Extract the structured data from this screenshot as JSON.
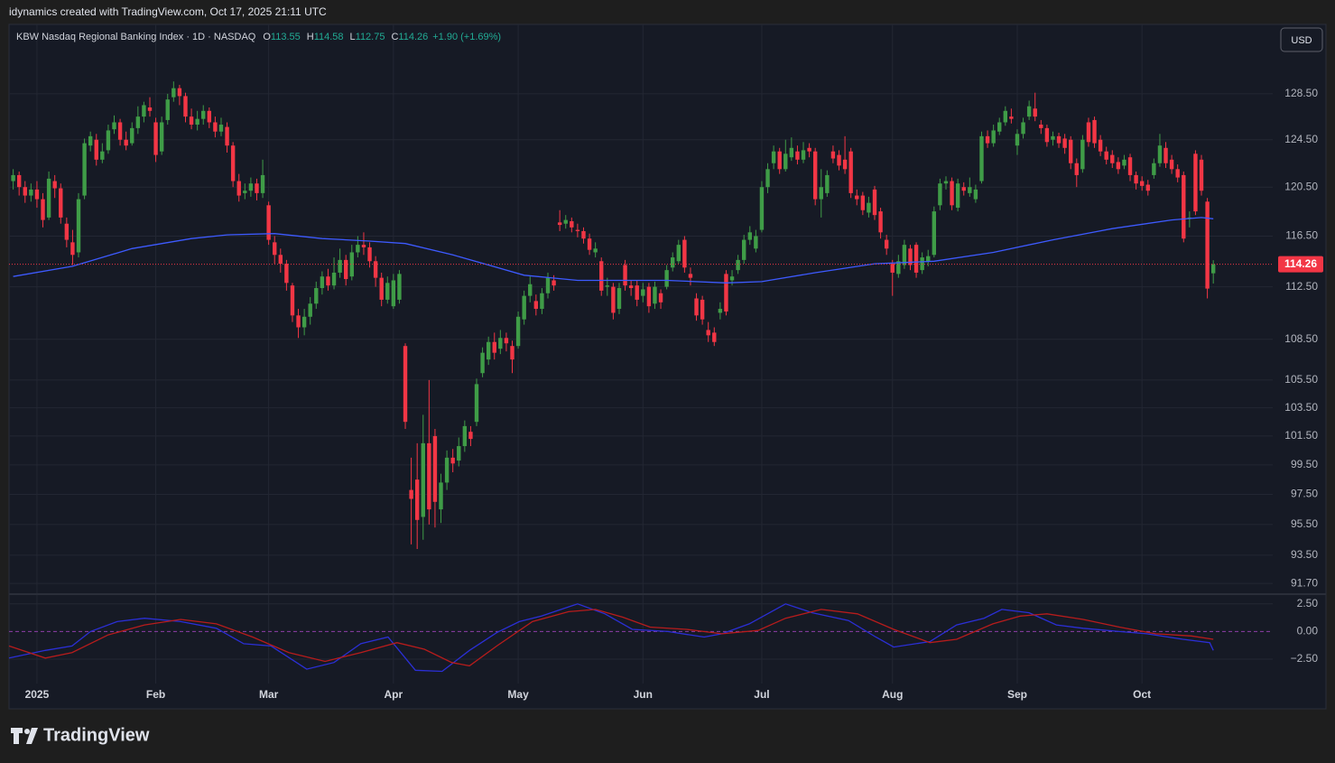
{
  "header": {
    "caption": "idynamics created with TradingView.com, Oct 17, 2025 21:11 UTC",
    "symbol": "KBW Nasdaq Regional Banking Index · 1D · NASDAQ",
    "ohlc_labels": [
      "O",
      "H",
      "L",
      "C"
    ],
    "change": "+1.90 (+1.69%)",
    "currency": "USD",
    "brand": "TradingView"
  },
  "chart_data": [
    {
      "type": "candlestick",
      "up_color": "#3f9c47",
      "down_color": "#f23645",
      "log_scale": true,
      "grid": true,
      "xlim": [
        -0.7,
        212
      ],
      "ylim": [
        91.08,
        134.8
      ],
      "xticks": [
        {
          "value": 4,
          "label": "2025"
        },
        {
          "value": 24,
          "label": "Feb"
        },
        {
          "value": 43,
          "label": "Mar"
        },
        {
          "value": 64,
          "label": "Apr"
        },
        {
          "value": 85,
          "label": "May"
        },
        {
          "value": 106,
          "label": "Jun"
        },
        {
          "value": 126,
          "label": "Jul"
        },
        {
          "value": 148,
          "label": "Aug"
        },
        {
          "value": 169,
          "label": "Sep"
        },
        {
          "value": 190,
          "label": "Oct"
        }
      ],
      "yticks": [
        {
          "value": 128.5,
          "label": "128.50"
        },
        {
          "value": 124.5,
          "label": "124.50"
        },
        {
          "value": 120.5,
          "label": "120.50"
        },
        {
          "value": 116.5,
          "label": "116.50"
        },
        {
          "value": 112.5,
          "label": "112.50"
        },
        {
          "value": 108.5,
          "label": "108.50"
        },
        {
          "value": 105.5,
          "label": "105.50"
        },
        {
          "value": 103.5,
          "label": "103.50"
        },
        {
          "value": 101.5,
          "label": "101.50"
        },
        {
          "value": 99.5,
          "label": "99.50"
        },
        {
          "value": 97.5,
          "label": "97.50"
        },
        {
          "value": 95.5,
          "label": "95.50"
        },
        {
          "value": 93.5,
          "label": "93.50"
        },
        {
          "value": 91.7,
          "label": "91.70"
        }
      ],
      "open": [
        121.0,
        121.5,
        120.5,
        119.8,
        120.3,
        119.5,
        118.0,
        121.0,
        120.4,
        117.5,
        116.0,
        115.2,
        119.8,
        124.0,
        124.5,
        122.8,
        123.6,
        125.4,
        126.0,
        124.5,
        124.2,
        125.5,
        126.5,
        127.3,
        126.0,
        123.5,
        126.2,
        128.2,
        129.0,
        128.3,
        126.5,
        125.8,
        126.3,
        127.0,
        126.0,
        125.2,
        125.6,
        124.0,
        121.0,
        120.0,
        120.2,
        120.8,
        120.0,
        119.0,
        116.0,
        115.0,
        114.3,
        112.6,
        110.3,
        109.4,
        110.2,
        111.2,
        112.4,
        113.3,
        112.6,
        113.6,
        114.6,
        113.3,
        115.2,
        115.8,
        115.6,
        114.5,
        113.2,
        111.5,
        111.0,
        111.5,
        108.0,
        97.8,
        98.5,
        96.0,
        101.0,
        101.5,
        96.5,
        98.3,
        100.0,
        99.8,
        100.8,
        101.8,
        102.5,
        106.0,
        107.0,
        108.3,
        107.8,
        108.6,
        108.0,
        108.0,
        110.0,
        111.8,
        111.4,
        110.8,
        112.0,
        113.0,
        117.6,
        117.5,
        117.7,
        117.0,
        116.9,
        116.3,
        115.2,
        114.5,
        112.5,
        112.5,
        110.8,
        114.2,
        112.6,
        112.6,
        111.8,
        112.5,
        111.2,
        112.0,
        112.5,
        114.0,
        114.5,
        116.2,
        113.5,
        111.6,
        111.5,
        109.2,
        109.0,
        110.5,
        113.5,
        113.0,
        113.8,
        114.6,
        116.2,
        115.5,
        117.0,
        120.5,
        122.5,
        123.5,
        122.0,
        123.0,
        123.5,
        122.8,
        123.8,
        123.5,
        119.5,
        120.0,
        123.5,
        123.2,
        122.8,
        123.5,
        119.8,
        119.8,
        118.4,
        120.3,
        118.5,
        116.2,
        114.3,
        113.5,
        114.2,
        115.5,
        115.8,
        113.8,
        114.5,
        115.0,
        119.0,
        120.8,
        121.0,
        118.8,
        120.5,
        120.0,
        119.5,
        121.0,
        124.8,
        124.2,
        125.2,
        126.0,
        126.5,
        124.0,
        125.0,
        126.5,
        127.2,
        125.8,
        125.5,
        124.5,
        124.8,
        124.6,
        124.5,
        122.5,
        122.0,
        126.0,
        126.2,
        124.5,
        123.5,
        123.2,
        122.6,
        122.3,
        123.0,
        121.5,
        121.0,
        120.7,
        121.5,
        122.5,
        123.8,
        122.8,
        122.0,
        121.5,
        118.0,
        123.3,
        122.8,
        119.3,
        113.55
      ],
      "high": [
        122.0,
        121.8,
        121.0,
        120.8,
        121.0,
        120.0,
        121.8,
        121.5,
        120.8,
        118.0,
        117.0,
        120.0,
        124.6,
        125.2,
        125.0,
        124.2,
        125.8,
        126.6,
        126.3,
        125.2,
        126.0,
        127.4,
        127.8,
        128.2,
        126.4,
        126.5,
        128.5,
        129.6,
        129.3,
        128.6,
        127.2,
        127.0,
        127.5,
        127.3,
        126.5,
        126.4,
        126.0,
        124.3,
        121.6,
        120.8,
        121.3,
        121.2,
        122.8,
        119.3,
        116.5,
        115.5,
        114.6,
        112.8,
        110.8,
        110.8,
        111.7,
        112.9,
        113.7,
        113.9,
        114.8,
        115.5,
        115.0,
        115.8,
        116.5,
        116.8,
        116.0,
        114.9,
        113.6,
        113.3,
        113.5,
        113.8,
        108.2,
        100.0,
        101.0,
        103.0,
        105.5,
        102.0,
        98.9,
        100.5,
        100.6,
        101.4,
        102.6,
        102.2,
        105.6,
        107.9,
        108.7,
        109.0,
        109.2,
        109.0,
        108.4,
        110.6,
        112.2,
        113.3,
        111.9,
        112.4,
        113.6,
        113.4,
        118.6,
        118.2,
        118.0,
        117.5,
        117.2,
        116.7,
        116.0,
        114.8,
        113.2,
        112.8,
        112.8,
        114.6,
        113.0,
        113.0,
        112.8,
        112.8,
        112.9,
        112.3,
        114.2,
        115.2,
        116.2,
        116.5,
        114.0,
        112.0,
        111.8,
        109.8,
        109.4,
        111.3,
        113.8,
        113.8,
        115.0,
        116.6,
        117.3,
        117.0,
        121.0,
        122.5,
        124.0,
        123.8,
        124.5,
        124.7,
        124.0,
        124.3,
        124.2,
        123.8,
        122.0,
        121.9,
        124.0,
        123.6,
        124.8,
        123.8,
        120.3,
        120.1,
        119.7,
        120.6,
        118.8,
        116.6,
        114.6,
        115.0,
        116.2,
        115.8,
        116.0,
        115.2,
        115.4,
        118.9,
        121.2,
        121.4,
        121.3,
        121.2,
        120.9,
        121.3,
        120.7,
        125.2,
        125.3,
        125.8,
        126.4,
        127.4,
        127.2,
        125.4,
        126.4,
        127.9,
        128.6,
        126.2,
        125.8,
        125.2,
        125.1,
        125.0,
        124.8,
        122.9,
        124.9,
        126.4,
        126.5,
        124.9,
        123.9,
        123.6,
        123.0,
        123.2,
        123.3,
        121.8,
        121.4,
        121.1,
        122.9,
        125.0,
        124.3,
        123.2,
        122.4,
        121.8,
        118.5,
        123.6,
        123.2,
        119.6,
        114.58
      ],
      "low": [
        120.3,
        119.8,
        119.2,
        119.3,
        118.8,
        117.2,
        117.8,
        119.6,
        117.5,
        115.6,
        114.2,
        114.8,
        119.5,
        123.5,
        122.3,
        122.5,
        123.3,
        125.0,
        124.0,
        123.6,
        124.0,
        125.0,
        126.0,
        126.5,
        122.6,
        123.2,
        125.8,
        127.8,
        127.5,
        126.0,
        125.4,
        125.3,
        125.8,
        125.5,
        124.7,
        124.8,
        123.4,
        120.5,
        119.3,
        119.5,
        119.7,
        119.4,
        119.6,
        115.8,
        114.3,
        113.6,
        112.2,
        109.8,
        108.6,
        108.8,
        109.6,
        110.8,
        111.9,
        112.2,
        112.3,
        113.2,
        112.6,
        113.0,
        114.8,
        115.0,
        114.0,
        112.5,
        111.0,
        111.2,
        110.8,
        111.2,
        102.0,
        94.2,
        93.9,
        94.5,
        95.5,
        95.3,
        95.6,
        97.8,
        99.0,
        99.4,
        100.4,
        100.8,
        102.2,
        105.7,
        106.6,
        107.0,
        107.4,
        107.6,
        106.0,
        107.8,
        109.6,
        111.3,
        110.3,
        110.4,
        111.6,
        112.2,
        116.9,
        117.1,
        116.8,
        116.4,
        115.9,
        115.0,
        114.8,
        111.8,
        111.8,
        110.0,
        110.4,
        112.2,
        111.8,
        111.0,
        111.3,
        110.5,
        110.8,
        110.8,
        112.3,
        113.7,
        114.3,
        113.6,
        112.6,
        109.9,
        109.6,
        108.3,
        108.0,
        110.0,
        110.3,
        112.6,
        113.5,
        114.3,
        115.8,
        115.2,
        116.8,
        120.0,
        122.0,
        121.6,
        121.8,
        122.7,
        122.4,
        122.5,
        123.0,
        119.0,
        118.0,
        119.7,
        122.5,
        121.9,
        121.6,
        119.6,
        119.0,
        118.2,
        118.0,
        117.8,
        116.3,
        115.0,
        111.8,
        113.2,
        113.9,
        113.8,
        113.2,
        113.5,
        114.1,
        114.8,
        118.6,
        120.3,
        118.6,
        118.5,
        119.8,
        119.7,
        119.2,
        120.8,
        123.8,
        123.9,
        124.9,
        125.7,
        125.9,
        123.2,
        124.6,
        126.2,
        126.1,
        125.0,
        123.9,
        124.0,
        123.8,
        123.3,
        122.0,
        120.5,
        121.7,
        123.9,
        123.8,
        123.1,
        122.4,
        122.1,
        121.6,
        122.0,
        121.0,
        120.3,
        120.2,
        119.8,
        121.2,
        122.2,
        122.1,
        121.6,
        120.9,
        116.0,
        117.2,
        118.2,
        119.8,
        111.6,
        112.75
      ],
      "close": [
        121.5,
        120.5,
        119.8,
        120.3,
        119.5,
        117.8,
        121.2,
        120.4,
        118.0,
        116.2,
        115.0,
        119.5,
        124.2,
        124.8,
        122.8,
        123.5,
        125.3,
        126.0,
        124.5,
        124.0,
        125.5,
        126.5,
        127.5,
        127.0,
        123.2,
        126.0,
        128.0,
        129.0,
        128.3,
        126.5,
        125.8,
        126.3,
        127.0,
        126.0,
        125.2,
        125.8,
        124.0,
        121.0,
        119.8,
        120.2,
        120.8,
        120.0,
        121.5,
        116.2,
        115.0,
        114.3,
        112.8,
        110.3,
        109.4,
        110.2,
        111.2,
        112.4,
        113.3,
        112.6,
        113.6,
        114.6,
        113.1,
        115.2,
        115.8,
        115.6,
        114.5,
        113.2,
        111.5,
        112.8,
        113.0,
        113.5,
        102.5,
        97.2,
        95.8,
        101.0,
        96.5,
        97.0,
        98.3,
        100.0,
        99.6,
        100.8,
        102.2,
        101.3,
        105.2,
        107.5,
        108.3,
        107.5,
        108.6,
        108.2,
        107.0,
        110.2,
        111.8,
        112.7,
        110.8,
        112.0,
        113.2,
        112.6,
        117.4,
        117.8,
        117.2,
        116.9,
        116.3,
        115.4,
        115.5,
        112.2,
        112.6,
        110.5,
        112.4,
        112.6,
        112.4,
        111.5,
        112.3,
        111.0,
        112.5,
        111.3,
        113.8,
        114.8,
        115.8,
        114.0,
        113.2,
        110.3,
        110.0,
        108.8,
        108.3,
        110.8,
        110.6,
        113.3,
        114.6,
        116.2,
        116.8,
        116.5,
        120.5,
        122.0,
        123.5,
        122.0,
        123.3,
        123.8,
        122.8,
        123.6,
        123.5,
        119.5,
        120.5,
        121.5,
        122.9,
        122.3,
        122.0,
        120.0,
        119.5,
        118.6,
        119.2,
        118.2,
        116.8,
        115.5,
        113.6,
        114.5,
        115.8,
        114.2,
        113.6,
        114.8,
        114.9,
        118.5,
        120.8,
        121.0,
        119.0,
        120.8,
        120.2,
        120.5,
        120.3,
        124.8,
        124.2,
        125.3,
        126.0,
        127.0,
        126.3,
        125.0,
        126.0,
        127.4,
        126.5,
        125.5,
        124.3,
        124.8,
        124.2,
        123.8,
        122.5,
        121.5,
        124.5,
        124.3,
        124.2,
        123.5,
        122.8,
        122.5,
        122.0,
        122.8,
        121.5,
        120.8,
        120.6,
        120.2,
        122.5,
        124.0,
        122.5,
        122.0,
        121.3,
        116.3,
        118.0,
        118.5,
        120.2,
        112.36,
        114.26
      ],
      "series": [
        {
          "color": "#3d5afe",
          "x": [
            0,
            10,
            20,
            30,
            36,
            44,
            52,
            60,
            66,
            74,
            80,
            86,
            95,
            110,
            120,
            126,
            135,
            145,
            155,
            165,
            175,
            185,
            195,
            200,
            202
          ],
          "values": [
            113.3,
            114.1,
            115.5,
            116.3,
            116.6,
            116.7,
            116.3,
            116.1,
            115.9,
            115.0,
            114.2,
            113.4,
            113.0,
            113.0,
            112.8,
            112.9,
            113.6,
            114.3,
            114.5,
            115.2,
            116.2,
            117.1,
            117.8,
            118.0,
            117.9
          ]
        }
      ]
    },
    {
      "type": "line",
      "xlim": [
        -0.7,
        212
      ],
      "ylim": [
        -4.7,
        3.3
      ],
      "baseline": 0,
      "baseline_color": "#8e3fa8",
      "yticks": [
        {
          "value": 2.5,
          "label": "2.50"
        },
        {
          "value": 0,
          "label": "0.00"
        },
        {
          "value": -2.5,
          "label": "−2.50"
        }
      ],
      "series": [
        {
          "color": "#2b2fd6",
          "x": [
            -0.7,
            5.4,
            9.9,
            13,
            17.5,
            22.1,
            28.2,
            34.2,
            38.8,
            43.4,
            49.4,
            54,
            58.5,
            63.1,
            67.7,
            72.2,
            76.8,
            81.4,
            85.2,
            88.9,
            95,
            99.6,
            104.2,
            110.2,
            116.3,
            119.3,
            123.9,
            130,
            134.5,
            140.6,
            145.2,
            148.2,
            154.3,
            158.8,
            163.4,
            166.4,
            171,
            175.6,
            180.1,
            186.2,
            190.8,
            196.9,
            201.4,
            202
          ],
          "values": [
            -2.4,
            -1.7,
            -1.3,
            0,
            0.9,
            1.2,
            0.9,
            0.3,
            -1.1,
            -1.3,
            -3.4,
            -2.8,
            -1.1,
            -0.5,
            -3.5,
            -3.6,
            -1.7,
            -0.1,
            0.9,
            1.4,
            2.5,
            1.6,
            0.2,
            0,
            -0.5,
            -0.2,
            0.7,
            2.5,
            1.7,
            1.0,
            -0.5,
            -1.4,
            -0.9,
            0.6,
            1.2,
            2.0,
            1.7,
            0.6,
            0.3,
            0,
            -0.2,
            -0.7,
            -1.0,
            -1.7
          ]
        },
        {
          "color": "#b71c1c",
          "x": [
            -0.7,
            5.4,
            9.9,
            16,
            22.1,
            28.2,
            34.2,
            40.3,
            46.4,
            52.5,
            58.5,
            64.6,
            69.2,
            73.8,
            76.8,
            81.4,
            87.4,
            93.5,
            98,
            102.6,
            107.2,
            113.3,
            119.3,
            125.4,
            130,
            136,
            142.1,
            148.2,
            154.3,
            158.8,
            164.9,
            169.5,
            174,
            180.1,
            186.2,
            192.3,
            198.3,
            202
          ],
          "values": [
            -1.3,
            -2.4,
            -1.9,
            -0.3,
            0.6,
            1.1,
            0.7,
            -0.5,
            -1.9,
            -2.7,
            -1.9,
            -1.0,
            -1.6,
            -2.8,
            -3.1,
            -1.3,
            0.9,
            1.8,
            2.0,
            1.3,
            0.4,
            0.2,
            -0.2,
            0.1,
            1.2,
            2.0,
            1.6,
            0.2,
            -1.0,
            -0.7,
            0.7,
            1.4,
            1.6,
            1.1,
            0.4,
            -0.2,
            -0.4,
            -0.7
          ]
        }
      ]
    }
  ]
}
